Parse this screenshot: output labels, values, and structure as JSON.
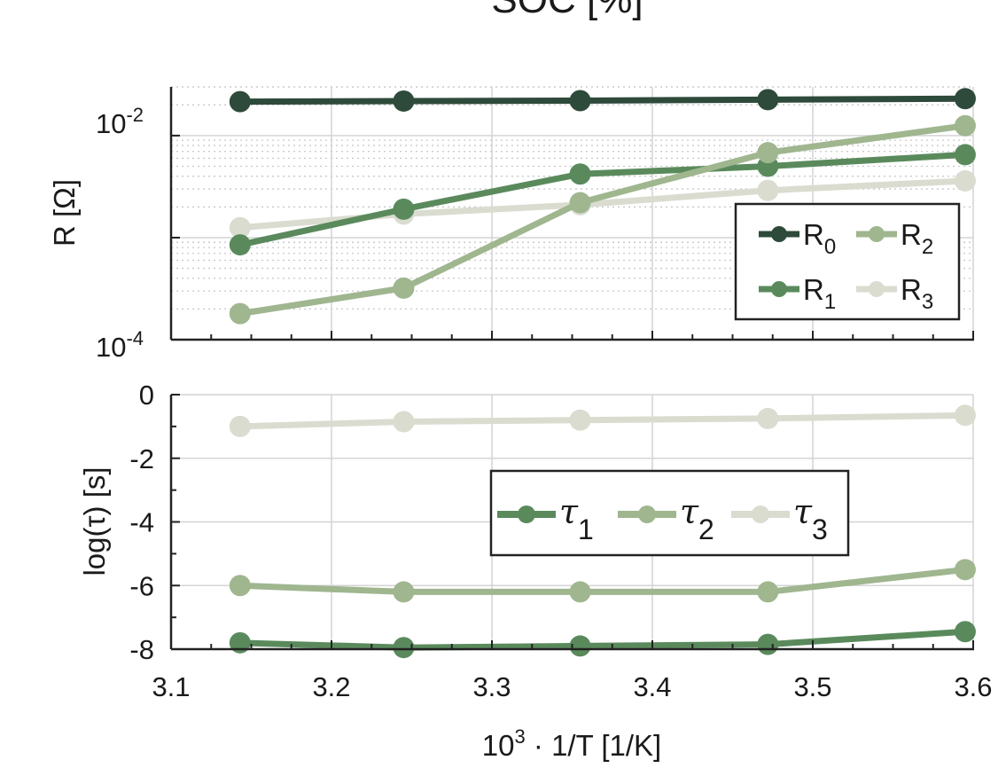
{
  "colors": {
    "R0": "#2e4a3a",
    "R1": "#5a8a5c",
    "R2": "#9fb68f",
    "R3": "#d9dccf",
    "tau1": "#5a8a5c",
    "tau2": "#9fb68f",
    "tau3": "#d9dccf",
    "grid": "#d4d4d4",
    "axis": "#222222"
  },
  "chart_data": {
    "type": "line",
    "top_title_fragment": "SOC [%]",
    "shared_x": {
      "values": [
        3.143,
        3.245,
        3.355,
        3.472,
        3.595
      ],
      "xlim": [
        3.1,
        3.6
      ],
      "ticks": [
        "3.1",
        "3.2",
        "3.3",
        "3.4",
        "3.5",
        "3.6"
      ],
      "xlabel_base": "10",
      "xlabel_exp": "3",
      "xlabel_rest": " · 1/T [1/K]"
    },
    "panels": [
      {
        "id": "resistance",
        "yscale": "log",
        "ylim": [
          0.0001,
          0.03
        ],
        "ylabel": "R [Ω]",
        "ytick_labels": [
          {
            "base": "10",
            "exp": "-2",
            "value": 0.01
          },
          {
            "base": "10",
            "exp": "-4",
            "value": 0.0001
          }
        ],
        "series": [
          {
            "name": "R0",
            "label": "R",
            "sub": "0",
            "values": [
              0.0215,
              0.0218,
              0.022,
              0.0225,
              0.023
            ]
          },
          {
            "name": "R1",
            "label": "R",
            "sub": "1",
            "values": [
              0.00085,
              0.0019,
              0.0042,
              0.005,
              0.0065
            ]
          },
          {
            "name": "R2",
            "label": "R",
            "sub": "2",
            "values": [
              0.00018,
              0.00032,
              0.0022,
              0.0068,
              0.0125
            ]
          },
          {
            "name": "R3",
            "label": "R",
            "sub": "3",
            "values": [
              0.00125,
              0.0017,
              0.0021,
              0.0029,
              0.0036
            ]
          }
        ],
        "legend": "bottom-right"
      },
      {
        "id": "time-constants",
        "yscale": "linear",
        "ylim": [
          -8,
          0
        ],
        "ylabel": "log(τ) [s]",
        "ytick_labels": [
          "0",
          "-2",
          "-4",
          "-6",
          "-8"
        ],
        "ytick_values": [
          0,
          -2,
          -4,
          -6,
          -8
        ],
        "series": [
          {
            "name": "tau1",
            "label": "τ",
            "sub": "1",
            "values": [
              -7.8,
              -7.95,
              -7.9,
              -7.85,
              -7.45
            ]
          },
          {
            "name": "tau2",
            "label": "τ",
            "sub": "2",
            "values": [
              -6.0,
              -6.2,
              -6.2,
              -6.2,
              -5.5
            ]
          },
          {
            "name": "tau3",
            "label": "τ",
            "sub": "3",
            "values": [
              -1.0,
              -0.85,
              -0.8,
              -0.75,
              -0.65
            ]
          }
        ],
        "legend": "center"
      }
    ]
  }
}
